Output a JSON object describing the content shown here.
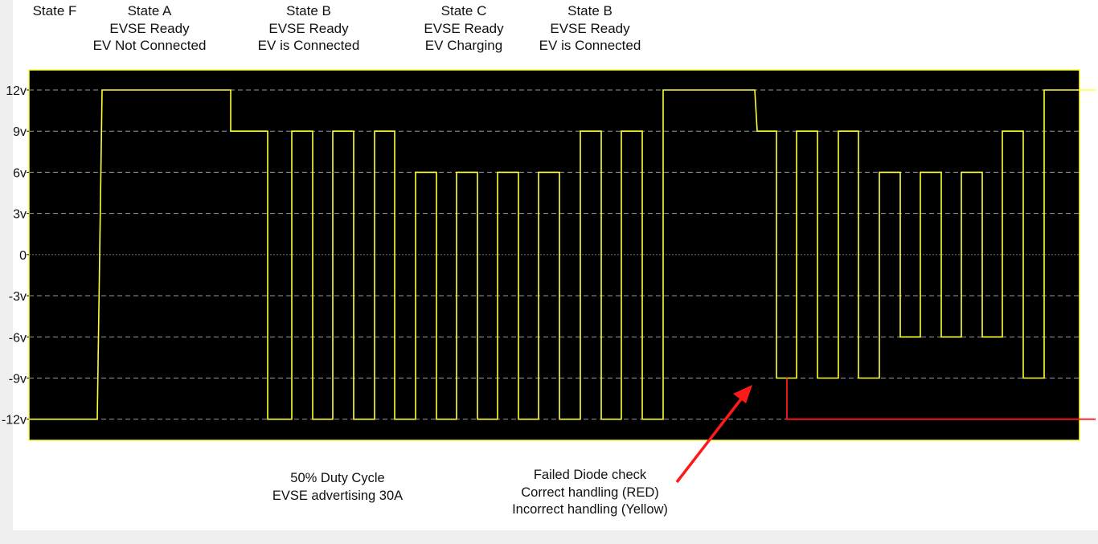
{
  "state_labels": [
    {
      "lines": [
        "State F"
      ]
    },
    {
      "lines": [
        "State A",
        "EVSE Ready",
        "EV Not Connected"
      ]
    },
    {
      "lines": [
        "State B",
        "EVSE Ready",
        "EV is Connected"
      ]
    },
    {
      "lines": [
        "State C",
        "EVSE Ready",
        "EV Charging"
      ]
    },
    {
      "lines": [
        "State B",
        "EVSE Ready",
        "EV is Connected"
      ]
    }
  ],
  "annotations": {
    "duty_cycle": {
      "line1": "50% Duty Cycle",
      "line2": "EVSE advertising 30A"
    },
    "diode_check": {
      "line1": "Failed Diode check",
      "line2": "Correct handling (RED)",
      "line3": "Incorrect handling (Yellow)"
    }
  },
  "colors": {
    "plot_background": "#000000",
    "plot_border": "#ffff33",
    "gridline": "#9a9a9a",
    "signal_incorrect": "#ffff33",
    "signal_correct": "#ff1a1a",
    "arrow": "#ff1a1a"
  },
  "chart_data": {
    "type": "line",
    "title": "",
    "xlabel": "",
    "ylabel": "",
    "ylim": [
      -14,
      14
    ],
    "yticks": [
      {
        "value": 12,
        "label": "12v"
      },
      {
        "value": 9,
        "label": "9v"
      },
      {
        "value": 6,
        "label": "6v"
      },
      {
        "value": 3,
        "label": "3v"
      },
      {
        "value": 0,
        "label": "0"
      },
      {
        "value": -3,
        "label": "-3v"
      },
      {
        "value": -6,
        "label": "-6v"
      },
      {
        "value": -9,
        "label": "-9v"
      },
      {
        "value": -12,
        "label": "-12v"
      }
    ],
    "grid": true,
    "series": [
      {
        "name": "Incorrect handling (Yellow)",
        "color": "#ffff33",
        "y": [
          -12,
          -12,
          12,
          12,
          9,
          9,
          -12,
          -12,
          9,
          9,
          -12,
          -12,
          9,
          9,
          -12,
          -12,
          9,
          9,
          -12,
          -12,
          6,
          6,
          -12,
          -12,
          6,
          6,
          -12,
          -12,
          6,
          6,
          -12,
          -12,
          6,
          6,
          -12,
          -12,
          9,
          9,
          -12,
          -12,
          9,
          9,
          -12,
          -12,
          12,
          12,
          9,
          9,
          -9,
          -9,
          9,
          9,
          -9,
          -9,
          9,
          9,
          -9,
          -9,
          6,
          6,
          -6,
          -6,
          6,
          6,
          -6,
          -6,
          6,
          6,
          -6,
          -6,
          9,
          9,
          -9,
          -9,
          12,
          12
        ]
      },
      {
        "name": "Correct handling (RED)",
        "color": "#ff1a1a",
        "y": [
          -9,
          -12,
          -12
        ]
      }
    ]
  }
}
